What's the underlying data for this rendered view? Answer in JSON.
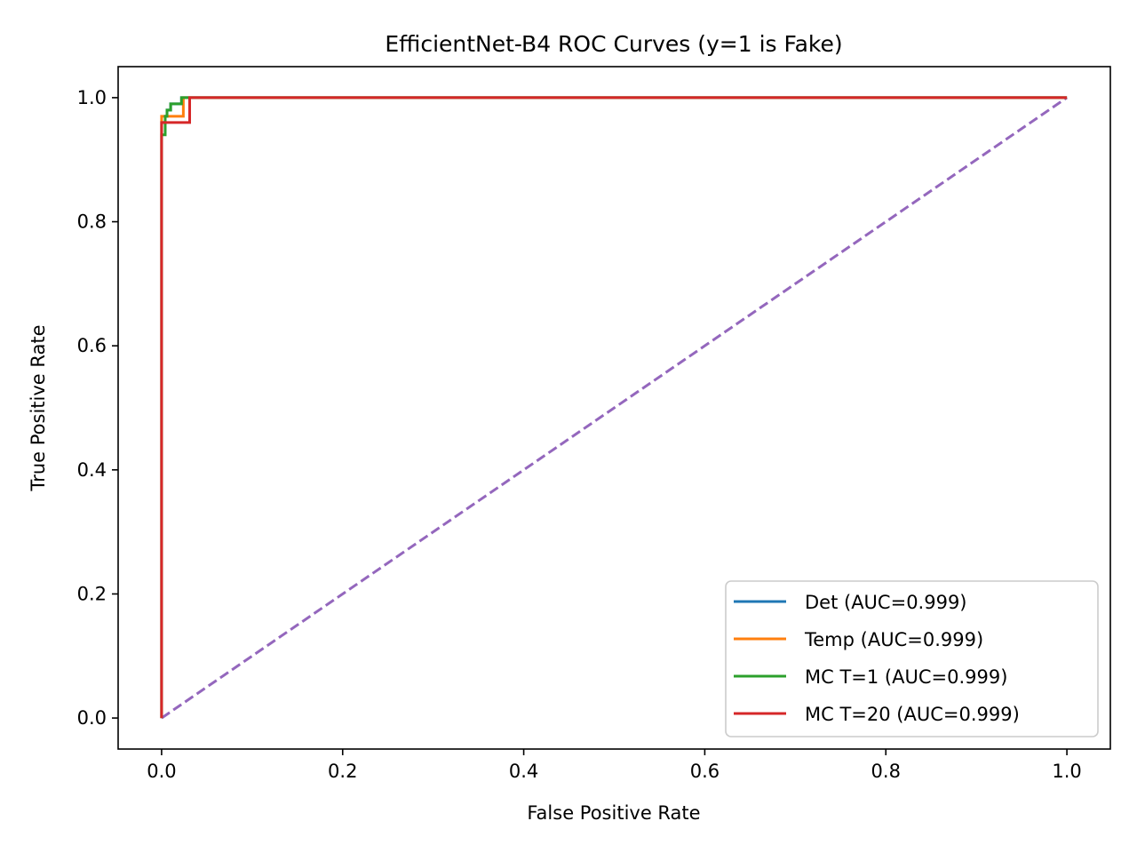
{
  "chart_data": {
    "type": "line",
    "title": "EfficientNet-B4 ROC Curves (y=1 is Fake)",
    "xlabel": "False Positive Rate",
    "ylabel": "True Positive Rate",
    "xlim": [
      -0.048,
      1.048
    ],
    "ylim": [
      -0.05,
      1.05
    ],
    "xticks": [
      0.0,
      0.2,
      0.4,
      0.6,
      0.8,
      1.0
    ],
    "xtick_labels": [
      "0.0",
      "0.2",
      "0.4",
      "0.6",
      "0.8",
      "1.0"
    ],
    "yticks": [
      0.0,
      0.2,
      0.4,
      0.6,
      0.8,
      1.0
    ],
    "ytick_labels": [
      "0.0",
      "0.2",
      "0.4",
      "0.6",
      "0.8",
      "1.0"
    ],
    "grid": false,
    "legend_position": "lower-right",
    "series": [
      {
        "name": "Det (AUC=0.999)",
        "color": "#1f77b4",
        "style": "solid",
        "x": [
          0.0,
          0.0,
          0.0,
          0.004,
          0.004,
          0.006,
          0.006,
          0.01,
          0.01,
          0.022,
          0.022,
          0.026,
          0.026,
          1.0
        ],
        "y": [
          0.0,
          0.95,
          0.96,
          0.96,
          0.97,
          0.97,
          0.98,
          0.98,
          0.99,
          0.99,
          1.0,
          1.0,
          1.0,
          1.0
        ]
      },
      {
        "name": "Temp (AUC=0.999)",
        "color": "#ff7f0e",
        "style": "solid",
        "x": [
          0.0,
          0.0,
          0.024,
          0.024,
          1.0
        ],
        "y": [
          0.0,
          0.97,
          0.97,
          1.0,
          1.0
        ]
      },
      {
        "name": "MC T=1 (AUC=0.999)",
        "color": "#2ca02c",
        "style": "solid",
        "x": [
          0.0,
          0.0,
          0.004,
          0.004,
          0.006,
          0.006,
          0.01,
          0.01,
          0.022,
          0.022,
          1.0
        ],
        "y": [
          0.0,
          0.94,
          0.94,
          0.97,
          0.97,
          0.98,
          0.98,
          0.99,
          0.99,
          1.0,
          1.0
        ]
      },
      {
        "name": "MC T=20 (AUC=0.999)",
        "color": "#d62728",
        "style": "solid",
        "x": [
          0.0,
          0.0,
          0.031,
          0.031,
          1.0
        ],
        "y": [
          0.0,
          0.96,
          0.96,
          1.0,
          1.0
        ]
      },
      {
        "name": "Chance",
        "color": "#9467bd",
        "style": "dashed",
        "show_in_legend": false,
        "x": [
          0.0,
          1.0
        ],
        "y": [
          0.0,
          1.0
        ]
      }
    ]
  }
}
